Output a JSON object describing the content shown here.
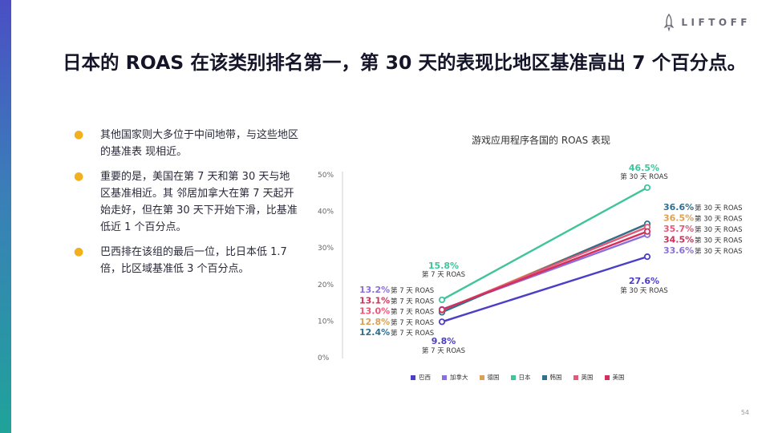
{
  "brand": {
    "name": "LIFTOFF",
    "logo_icon": "rocket-icon"
  },
  "title": "日本的 ROAS 在该类别排名第一，第 30 天的表现比地区基准高出 7 个百分点。",
  "bullets": [
    "其他国家则大多位于中间地带，与这些地区的基准表 现相近。",
    "重要的是，美国在第  7 天和第  30 天与地区基准相近。其 邻居加拿大在第 7 天起开始走好，但在第  30 天下开始下滑，比基准低近  1 个百分点。",
    "巴西排在该组的最后一位，比日本低 1.7 倍，比区域基准低  3 个百分点。"
  ],
  "page_number": "54",
  "chart_data": {
    "type": "line",
    "title": "游戏应用程序各国的 ROAS 表现",
    "y_ticks": [
      "50%",
      "40%",
      "30%",
      "20%",
      "10%",
      "0%"
    ],
    "ylim": [
      0,
      50
    ],
    "x": [
      "第 7 天",
      "第 30 天"
    ],
    "point_label_suffix": [
      "第 7 天 ROAS",
      "第 30 天 ROAS"
    ],
    "series": [
      {
        "name": "巴西",
        "color": "#4b3fc7",
        "values": [
          9.8,
          27.6
        ],
        "labels": [
          "9.8%",
          "27.6%"
        ]
      },
      {
        "name": "加拿大",
        "color": "#8b6fdc",
        "values": [
          13.2,
          33.6
        ],
        "labels": [
          "13.2%",
          "33.6%"
        ]
      },
      {
        "name": "德国",
        "color": "#d9a257",
        "values": [
          12.8,
          36.5
        ],
        "labels": [
          "12.8%",
          "36.5%"
        ]
      },
      {
        "name": "日本",
        "color": "#3fc49b",
        "values": [
          15.8,
          46.5
        ],
        "labels": [
          "15.8%",
          "46.5%"
        ]
      },
      {
        "name": "韩国",
        "color": "#2f6f8f",
        "values": [
          12.4,
          36.6
        ],
        "labels": [
          "12.4%",
          "36.6%"
        ]
      },
      {
        "name": "英国",
        "color": "#e25a7a",
        "values": [
          13.0,
          35.7
        ],
        "labels": [
          "13.0%",
          "35.7%"
        ]
      },
      {
        "name": "美国",
        "color": "#d32f5a",
        "values": [
          13.1,
          34.5
        ],
        "labels": [
          "13.1%",
          "34.5%"
        ]
      }
    ],
    "grid": false,
    "legend_position": "bottom"
  }
}
